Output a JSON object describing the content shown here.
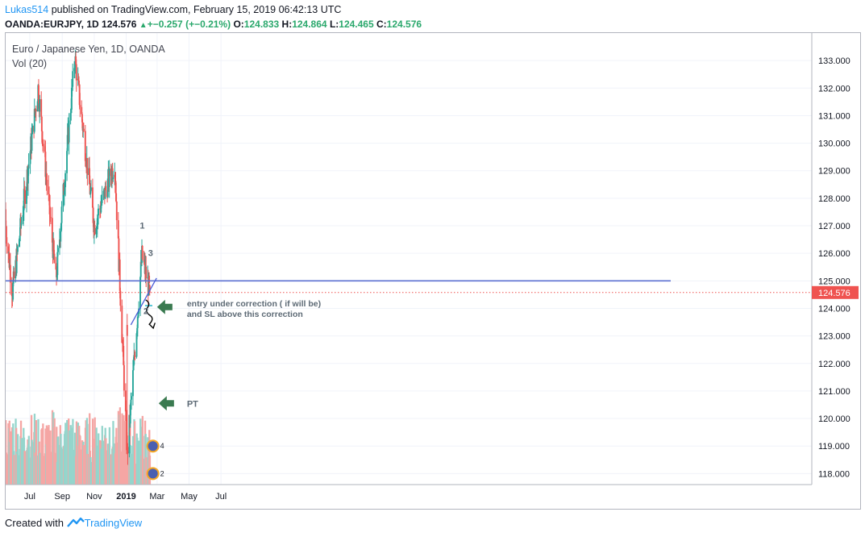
{
  "header": {
    "user": "Lukas514",
    "published": " published on TradingView.com, February 15, 2019 06:42:13 UTC"
  },
  "symbol_row": {
    "symbol": "OANDA:EURJPY, 1D",
    "last": "124.576",
    "change": "+−0.257 (+−0.21%)",
    "o_label": "O:",
    "o_val": "124.833",
    "h_label": "H:",
    "h_val": "124.864",
    "l_label": "L:",
    "l_val": "124.465",
    "c_label": "C:",
    "c_val": "124.576"
  },
  "footer": {
    "created": "Created with",
    "brand": "TradingView"
  },
  "colors": {
    "up": "#26a69a",
    "down": "#ef5350",
    "vol_up": "#95d5cc",
    "vol_down": "#f5a6a4",
    "accent": "#2196f3",
    "annotation": "#3a6b4a"
  },
  "chart_data": {
    "type": "candlestick",
    "title": "Euro / Japanese Yen, 1D, OANDA",
    "subtitle": "Vol (20)",
    "y_ticks": [
      "133.000",
      "132.000",
      "131.000",
      "130.000",
      "129.000",
      "128.000",
      "127.000",
      "126.000",
      "125.000",
      "124.000",
      "123.000",
      "122.000",
      "121.000",
      "120.000",
      "119.000",
      "118.000"
    ],
    "x_ticks": [
      "Jul",
      "Sep",
      "Nov",
      "2019",
      "Mar",
      "May",
      "Jul"
    ],
    "ylim": [
      117.6,
      134.0
    ],
    "last_price_label": "124.576",
    "last_price": 124.576,
    "horizontal_line": 125.0,
    "trendline": {
      "from": [
        "2019-01-10",
        123.4
      ],
      "to": [
        "2019-02-28",
        125.1
      ]
    },
    "trend_segment": {
      "from": [
        "2019-02-06",
        124.1
      ],
      "to": [
        "2019-02-20",
        124.1
      ]
    },
    "annotations": {
      "wave_1": "1",
      "wave_2": "2",
      "wave_3": "3",
      "entry_line1": "entry under correction ( if will be)",
      "entry_line2": "and SL above this correction",
      "pt": "PT",
      "badge_a": "4",
      "badge_b": "2"
    },
    "key_points": [
      {
        "date": "2018-05-29",
        "low": 124.6
      },
      {
        "date": "2018-07-17",
        "high": 132.0
      },
      {
        "date": "2018-08-20",
        "low": 125.0
      },
      {
        "date": "2018-09-25",
        "high": 133.1
      },
      {
        "date": "2018-11-01",
        "low": 127.0
      },
      {
        "date": "2018-12-10",
        "high": 129.3
      },
      {
        "date": "2019-01-03",
        "low": 118.7
      },
      {
        "date": "2019-01-31",
        "high": 125.9
      },
      {
        "date": "2019-02-15",
        "close": 124.576
      }
    ]
  }
}
